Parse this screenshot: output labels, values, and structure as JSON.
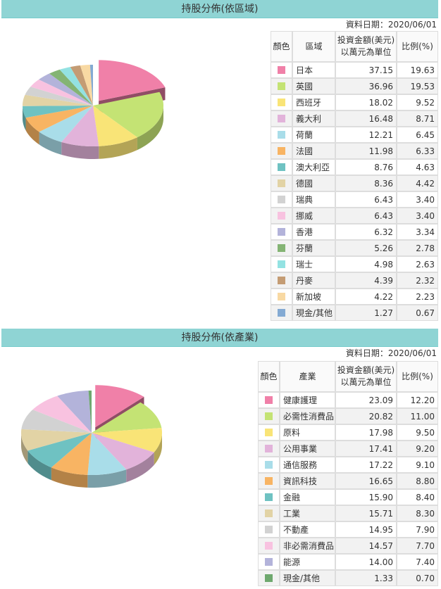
{
  "sections": [
    {
      "title": "持股分佈(依區域)",
      "date": "資料日期：2020/06/01",
      "headers": {
        "color": "顏色",
        "name": "區域",
        "amount": [
          "投資金額(美元)",
          "以萬元為單位"
        ],
        "percent": "比例(%)"
      },
      "rows": [
        {
          "color": "#f080a8",
          "name": "日本",
          "amount": 37.15,
          "percent": 19.63
        },
        {
          "color": "#c4e374",
          "name": "英國",
          "amount": 36.96,
          "percent": 19.53
        },
        {
          "color": "#f9e477",
          "name": "西班牙",
          "amount": 18.02,
          "percent": 9.52
        },
        {
          "color": "#e2b3da",
          "name": "義大利",
          "amount": 16.48,
          "percent": 8.71
        },
        {
          "color": "#a9dde9",
          "name": "荷蘭",
          "amount": 12.21,
          "percent": 6.45
        },
        {
          "color": "#f8b463",
          "name": "法國",
          "amount": 11.98,
          "percent": 6.33
        },
        {
          "color": "#6fc2c2",
          "name": "澳大利亞",
          "amount": 8.76,
          "percent": 4.63
        },
        {
          "color": "#e2d3a5",
          "name": "德國",
          "amount": 8.36,
          "percent": 4.42
        },
        {
          "color": "#d2d2d2",
          "name": "瑞典",
          "amount": 6.43,
          "percent": 3.4,
          "percent_label": "3.40"
        },
        {
          "color": "#f8c2e0",
          "name": "挪威",
          "amount": 6.43,
          "percent": 3.4,
          "percent_label": "3.40"
        },
        {
          "color": "#b3b3da",
          "name": "香港",
          "amount": 6.32,
          "percent": 3.34
        },
        {
          "color": "#84b474",
          "name": "芬蘭",
          "amount": 5.26,
          "percent": 2.78
        },
        {
          "color": "#93e2e2",
          "name": "瑞士",
          "amount": 4.98,
          "percent": 2.63
        },
        {
          "color": "#c49c74",
          "name": "丹麥",
          "amount": 4.39,
          "percent": 2.32
        },
        {
          "color": "#f8d9a3",
          "name": "新加坡",
          "amount": 4.22,
          "percent": 2.23
        },
        {
          "color": "#84aad3",
          "name": "現金/其他",
          "amount": 1.27,
          "percent": 0.67
        }
      ]
    },
    {
      "title": "持股分佈(依產業)",
      "date": "資料日期：2020/06/01",
      "headers": {
        "color": "顏色",
        "name": "產業",
        "amount": [
          "投資金額(美元)",
          "以萬元為單位"
        ],
        "percent": "比例(%)"
      },
      "rows": [
        {
          "color": "#f080a8",
          "name": "健康護理",
          "amount": 23.09,
          "percent": 12.2,
          "percent_label": "12.20"
        },
        {
          "color": "#c4e374",
          "name": "必需性消費品",
          "amount": 20.82,
          "percent": 11,
          "percent_label": "11.00"
        },
        {
          "color": "#f9e477",
          "name": "原料",
          "amount": 17.98,
          "percent": 9.5,
          "percent_label": "9.50"
        },
        {
          "color": "#e2b3da",
          "name": "公用事業",
          "amount": 17.41,
          "percent": 9.2,
          "percent_label": "9.20"
        },
        {
          "color": "#a9dde9",
          "name": "通信服務",
          "amount": 17.22,
          "percent": 9.1,
          "percent_label": "9.10"
        },
        {
          "color": "#f8b463",
          "name": "資訊科技",
          "amount": 16.65,
          "percent": 8.8,
          "percent_label": "8.80"
        },
        {
          "color": "#6fc2c2",
          "name": "金融",
          "amount": 15.9,
          "amount_label": "15.90",
          "percent": 8.4,
          "percent_label": "8.40"
        },
        {
          "color": "#e2d3a5",
          "name": "工業",
          "amount": 15.71,
          "percent": 8.3,
          "percent_label": "8.30"
        },
        {
          "color": "#d2d2d2",
          "name": "不動產",
          "amount": 14.95,
          "percent": 7.9,
          "percent_label": "7.90"
        },
        {
          "color": "#f8c2e0",
          "name": "非必需消費品",
          "amount": 14.57,
          "percent": 7.7,
          "percent_label": "7.70"
        },
        {
          "color": "#b3b3da",
          "name": "能源",
          "amount": 14,
          "amount_label": "14.00",
          "percent": 7.4,
          "percent_label": "7.40"
        },
        {
          "color": "#6ea86e",
          "name": "現金/其他",
          "amount": 1.33,
          "percent": 0.7,
          "percent_label": "0.70"
        }
      ]
    }
  ]
}
